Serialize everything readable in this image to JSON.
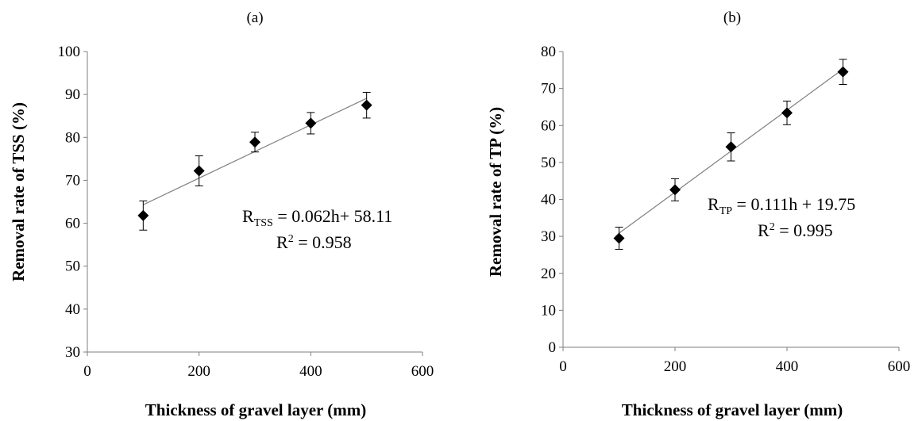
{
  "chart_data": [
    {
      "type": "scatter",
      "panel_label": "(a)",
      "xlabel": "Thickness of gravel layer  (mm)",
      "ylabel": "Removal rate of TSS (%)",
      "xlim": [
        0,
        600
      ],
      "ylim": [
        30,
        100
      ],
      "xticks": [
        0,
        200,
        400,
        600
      ],
      "yticks": [
        30,
        40,
        50,
        60,
        70,
        80,
        90,
        100
      ],
      "grid": false,
      "points": [
        {
          "x": 100,
          "y": 61.8,
          "err": 3.4
        },
        {
          "x": 200,
          "y": 72.2,
          "err": 3.5
        },
        {
          "x": 300,
          "y": 78.9,
          "err": 2.3
        },
        {
          "x": 400,
          "y": 83.3,
          "err": 2.5
        },
        {
          "x": 500,
          "y": 87.5,
          "err": 3.0
        }
      ],
      "fit": {
        "slope": 0.062,
        "intercept": 58.11,
        "x_range": [
          100,
          500
        ]
      },
      "equation": {
        "prefix": "R",
        "sub": "TSS",
        "rest": " = 0.062h+ 58.11"
      },
      "r2": {
        "prefix": "R",
        "sup": "2",
        "rest": " = 0.958"
      }
    },
    {
      "type": "scatter",
      "panel_label": "(b)",
      "xlabel": "Thickness of gravel layer  (mm)",
      "ylabel": "Removal rate of TP (%)",
      "xlim": [
        0,
        600
      ],
      "ylim": [
        0,
        80
      ],
      "xticks": [
        0,
        200,
        400,
        600
      ],
      "yticks": [
        0,
        10,
        20,
        30,
        40,
        50,
        60,
        70,
        80
      ],
      "grid": false,
      "points": [
        {
          "x": 100,
          "y": 29.5,
          "err": 3.0
        },
        {
          "x": 200,
          "y": 42.6,
          "err": 3.0
        },
        {
          "x": 300,
          "y": 54.2,
          "err": 3.8
        },
        {
          "x": 400,
          "y": 63.4,
          "err": 3.2
        },
        {
          "x": 500,
          "y": 74.5,
          "err": 3.4
        }
      ],
      "fit": {
        "slope": 0.111,
        "intercept": 19.75,
        "x_range": [
          100,
          500
        ]
      },
      "equation": {
        "prefix": "R",
        "sub": "TP",
        "rest": " = 0.111h + 19.75"
      },
      "r2": {
        "prefix": "R",
        "sup": "2",
        "rest": " = 0.995"
      }
    }
  ],
  "colors": {
    "marker": "#000000",
    "fit_line": "#7f7f7f",
    "axis": "#7f7f7f",
    "text": "#000000"
  }
}
